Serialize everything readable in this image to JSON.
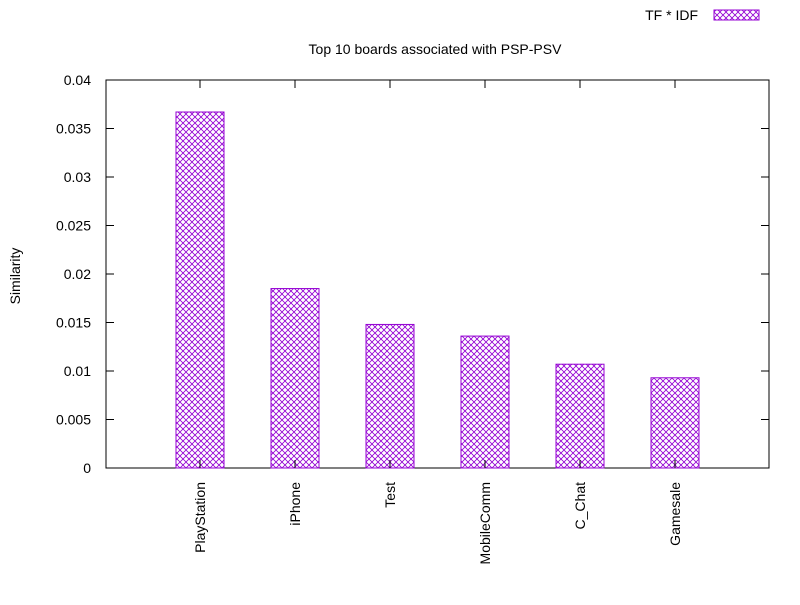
{
  "chart_data": {
    "type": "bar",
    "title": "Top 10 boards associated with PSP-PSV",
    "xlabel": "",
    "ylabel": "Similarity",
    "categories": [
      "PlayStation",
      "iPhone",
      "Test",
      "MobileComm",
      "C_Chat",
      "Gamesale"
    ],
    "series": [
      {
        "name": "TF * IDF",
        "values": [
          0.0367,
          0.0185,
          0.0148,
          0.0136,
          0.0107,
          0.0093
        ]
      }
    ],
    "ylim": [
      0,
      0.04
    ],
    "yticks": [
      "0",
      "0.005",
      "0.01",
      "0.015",
      "0.02",
      "0.025",
      "0.03",
      "0.035",
      "0.04"
    ],
    "legend_position": "top-right",
    "bar_color": "#9400d3",
    "grid": false
  }
}
